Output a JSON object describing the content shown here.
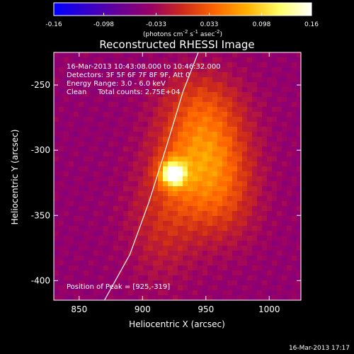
{
  "chart_data": {
    "type": "heatmap",
    "title": "Reconstructed RHESSI Image",
    "xlabel": "Heliocentric X (arcsec)",
    "ylabel": "Heliocentric Y (arcsec)",
    "xlim": [
      830,
      1025
    ],
    "ylim": [
      -415,
      -225
    ],
    "x_ticks": [
      "850",
      "900",
      "950",
      "1000"
    ],
    "x_tick_values": [
      850,
      900,
      950,
      1000
    ],
    "y_ticks": [
      "-250",
      "-300",
      "-350",
      "-400"
    ],
    "y_tick_values": [
      -250,
      -300,
      -350,
      -400
    ],
    "header_lines": [
      "16-Mar-2013 10:43:08.000 to 10:46:32.000",
      "Detectors: 3F 5F 6F 7F 8F 9F, Att 0",
      "Energy Range: 3.0 - 6.0 keV",
      "Clean     Total counts: 2.75E+04"
    ],
    "peak_label": "Position of Peak = [925,-319]",
    "peak": [
      925,
      -319
    ],
    "limb_curve": [
      [
        870,
        -415
      ],
      [
        890,
        -380
      ],
      [
        905,
        -340
      ],
      [
        918,
        -300
      ],
      [
        932,
        -255
      ],
      [
        944,
        -225
      ]
    ],
    "colorbar": {
      "ticks": [
        "-0.16",
        "-0.098",
        "-0.033",
        "0.033",
        "0.098",
        "0.16"
      ],
      "tick_values": [
        -0.16,
        -0.098,
        -0.033,
        0.033,
        0.098,
        0.16
      ],
      "range": [
        -0.16,
        0.16
      ],
      "units": "(photons cm",
      "units_exp1": "-2",
      "units_mid": " s",
      "units_exp2": "-1",
      "units_mid2": " asec",
      "units_exp3": "-2",
      "units_end": ")",
      "colormap": [
        "#0000ff",
        "#3300cc",
        "#660099",
        "#990066",
        "#cc2a1a",
        "#ff6600",
        "#ffb000",
        "#ffff66",
        "#ffffff"
      ]
    },
    "sources": [
      {
        "x": 924,
        "y": -318,
        "sx": 7,
        "sy": 7,
        "amp": 0.16
      },
      {
        "x": 938,
        "y": -310,
        "sx": 22,
        "sy": 30,
        "amp": 0.07
      },
      {
        "x": 958,
        "y": -295,
        "sx": 22,
        "sy": 28,
        "amp": 0.05
      },
      {
        "x": 965,
        "y": -340,
        "sx": 20,
        "sy": 25,
        "amp": 0.04
      },
      {
        "x": 915,
        "y": -360,
        "sx": 20,
        "sy": 30,
        "amp": 0.035
      },
      {
        "x": 945,
        "y": -260,
        "sx": 22,
        "sy": 18,
        "amp": 0.03
      }
    ],
    "background": -0.045
  },
  "footer": {
    "timestamp": "16-Mar-2013 17:17"
  }
}
